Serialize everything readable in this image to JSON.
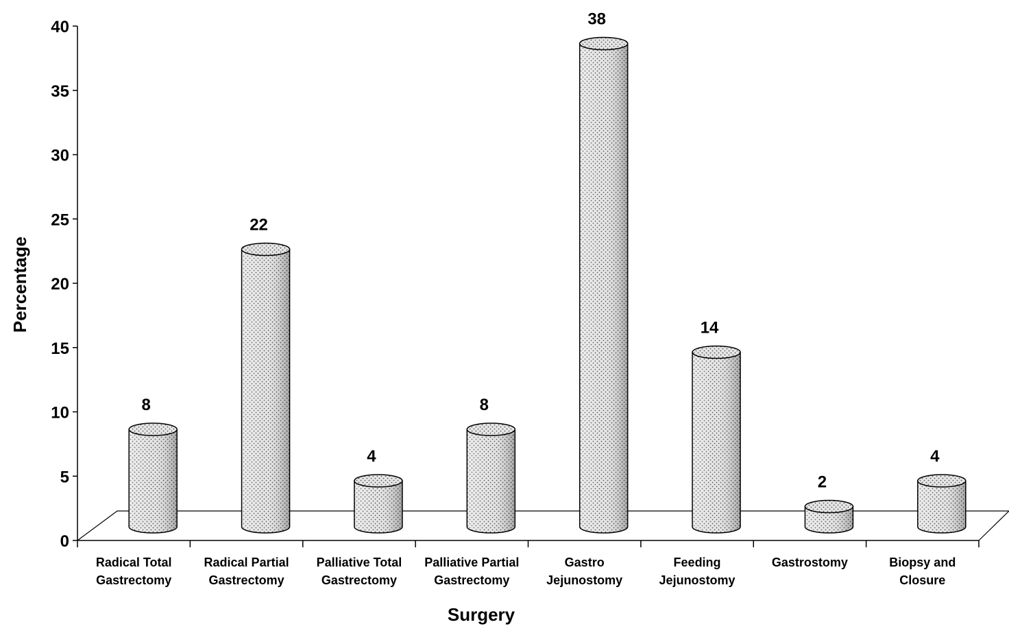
{
  "chart_data": {
    "type": "bar",
    "style": "3d-cylinder",
    "categories": [
      [
        "Radical Total",
        "Gastrectomy"
      ],
      [
        "Radical Partial",
        "Gastrectomy"
      ],
      [
        "Palliative Total",
        "Gastrectomy"
      ],
      [
        "Palliative Partial",
        "Gastrectomy"
      ],
      [
        "Gastro",
        "Jejunostomy"
      ],
      [
        "Feeding",
        "Jejunostomy"
      ],
      [
        "Gastrostomy"
      ],
      [
        "Biopsy and",
        "Closure"
      ]
    ],
    "values": [
      8,
      22,
      4,
      8,
      38,
      14,
      2,
      4
    ],
    "data_labels": [
      "8",
      "22",
      "4",
      "8",
      "38",
      "14",
      "2",
      "4"
    ],
    "xlabel": "Surgery",
    "ylabel": "Percentage",
    "ylim": [
      0,
      40
    ],
    "yticks": [
      0,
      5,
      10,
      15,
      20,
      25,
      30,
      35,
      40
    ],
    "grid": false,
    "legend": "none",
    "colors": {
      "bar_fill": "#d9d9d9",
      "bar_dots": "#555555",
      "outline": "#000000",
      "background": "#ffffff"
    }
  }
}
